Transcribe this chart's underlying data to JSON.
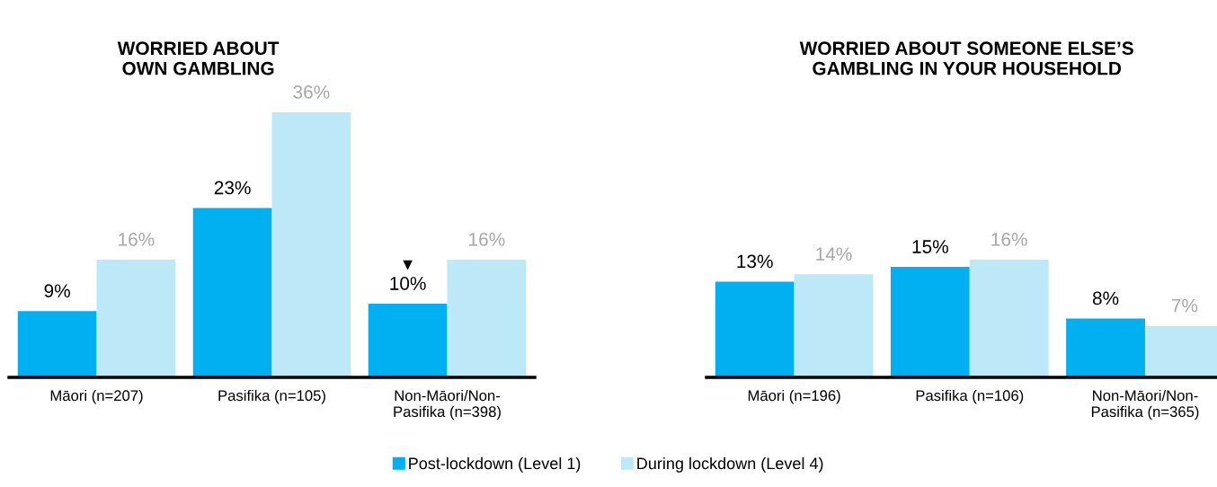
{
  "chart_data": [
    {
      "type": "bar",
      "title": "WORRIED ABOUT\nOWN GAMBLING",
      "categories": [
        "Māori (n=207)",
        "Pasifika (n=105)",
        "Non-Māori/Non-\nPasifika (n=398)"
      ],
      "series": [
        {
          "name": "Post-lockdown (Level 1)",
          "color": "#00b0f0",
          "values": [
            9,
            23,
            10
          ],
          "value_labels": [
            "9%",
            "23%",
            "10%"
          ]
        },
        {
          "name": "During lockdown (Level 4)",
          "color": "#bde8f7",
          "values": [
            16,
            36,
            16
          ],
          "value_labels": [
            "16%",
            "36%",
            "16%"
          ]
        }
      ],
      "legend": "bottom",
      "annotations": [
        {
          "text": "▼",
          "x": "Non-Māori/Non-\nPasifika (n=398)",
          "y": 15.2
        }
      ]
    },
    {
      "type": "bar",
      "title": "WORRIED ABOUT SOMEONE ELSE’S\nGAMBLING IN YOUR HOUSEHOLD",
      "categories": [
        "Māori (n=196)",
        "Pasifika (n=106)",
        "Non-Māori/Non-\nPasifika (n=365)"
      ],
      "series": [
        {
          "name": "Post-lockdown (Level 1)",
          "color": "#00b0f0",
          "values": [
            13,
            15,
            8
          ],
          "value_labels": [
            "13%",
            "15%",
            "8%"
          ]
        },
        {
          "name": "During lockdown (Level 4)",
          "color": "#bde8f7",
          "values": [
            14,
            16,
            7
          ],
          "value_labels": [
            "14%",
            "16%",
            "7%"
          ]
        }
      ]
    }
  ]
}
